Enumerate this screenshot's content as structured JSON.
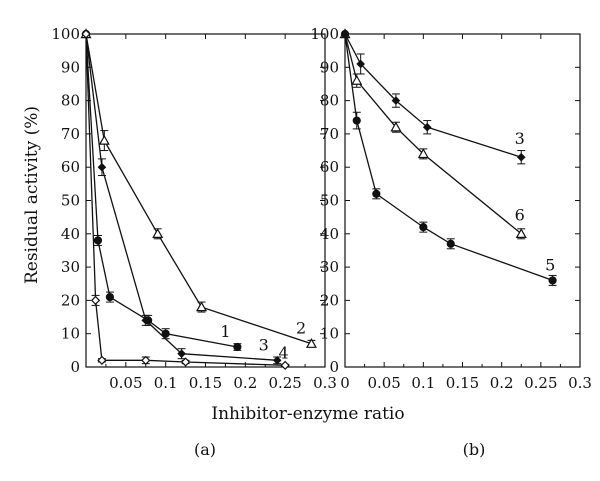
{
  "figure": {
    "ylabel": "Residual activity (%)",
    "xlabel": "Inhibitor-enzyme ratio"
  },
  "chart_data": [
    {
      "type": "line",
      "panel": "(a)",
      "xlim": [
        0,
        0.3
      ],
      "ylim": [
        0,
        100
      ],
      "x_ticks": [
        "0.05",
        "0.1",
        "0.15",
        "0.2",
        "0.25",
        "0.3"
      ],
      "x_tick_values": [
        0.05,
        0.1,
        0.15,
        0.2,
        0.25,
        0.3
      ],
      "y_ticks": [
        "0",
        "10",
        "20",
        "30",
        "40",
        "50",
        "60",
        "70",
        "80",
        "90",
        "100"
      ],
      "y_tick_values": [
        0,
        10,
        20,
        30,
        40,
        50,
        60,
        70,
        80,
        90,
        100
      ],
      "grid": false,
      "series": [
        {
          "name": "1",
          "marker": "filled-circle",
          "x": [
            0,
            0.015,
            0.03,
            0.078,
            0.1,
            0.19
          ],
          "y": [
            100,
            38,
            21,
            14,
            10,
            6
          ],
          "err": [
            0,
            1.5,
            1.5,
            1.5,
            1.5,
            1
          ]
        },
        {
          "name": "2",
          "marker": "open-triangle",
          "x": [
            0,
            0.023,
            0.09,
            0.145,
            0.283
          ],
          "y": [
            100,
            68,
            40,
            18,
            7
          ],
          "err": [
            0,
            3,
            1.5,
            1.5,
            1
          ]
        },
        {
          "name": "3",
          "marker": "filled-diamond",
          "x": [
            0,
            0.02,
            0.075,
            0.12,
            0.24
          ],
          "y": [
            100,
            60,
            14,
            4,
            2
          ],
          "err": [
            0,
            2.5,
            1.5,
            1.5,
            1
          ]
        },
        {
          "name": "4",
          "marker": "open-diamond",
          "x": [
            0,
            0.012,
            0.02,
            0.075,
            0.125,
            0.25
          ],
          "y": [
            100,
            20,
            2,
            2,
            1.5,
            0.5
          ],
          "err": [
            0,
            1.5,
            0.5,
            1,
            0.5,
            0.3
          ]
        }
      ],
      "labels": [
        {
          "text": "1",
          "x": 0.175,
          "y": 9
        },
        {
          "text": "2",
          "x": 0.27,
          "y": 10
        },
        {
          "text": "3",
          "x": 0.223,
          "y": 5
        },
        {
          "text": "4",
          "x": 0.248,
          "y": 2.5
        }
      ]
    },
    {
      "type": "line",
      "panel": "(b)",
      "xlim": [
        0,
        0.3
      ],
      "ylim": [
        0,
        100
      ],
      "x_ticks": [
        "0",
        "0.05",
        "0.1",
        "0.15",
        "0.2",
        "0.25",
        "0.3"
      ],
      "x_tick_values": [
        0,
        0.05,
        0.1,
        0.15,
        0.2,
        0.25,
        0.3
      ],
      "y_ticks": [
        "0",
        "10",
        "20",
        "30",
        "40",
        "50",
        "60",
        "70",
        "80",
        "90",
        "100"
      ],
      "y_tick_values": [
        0,
        10,
        20,
        30,
        40,
        50,
        60,
        70,
        80,
        90,
        100
      ],
      "grid": false,
      "series": [
        {
          "name": "3",
          "marker": "filled-diamond",
          "x": [
            0,
            0.02,
            0.065,
            0.105,
            0.225
          ],
          "y": [
            100,
            91,
            80,
            72,
            63
          ],
          "err": [
            0,
            3,
            2,
            2,
            2
          ]
        },
        {
          "name": "6",
          "marker": "open-triangle",
          "x": [
            0,
            0.015,
            0.065,
            0.1,
            0.225
          ],
          "y": [
            100,
            86,
            72,
            64,
            40
          ],
          "err": [
            0,
            2,
            1.5,
            1.5,
            1.5
          ]
        },
        {
          "name": "5",
          "marker": "filled-circle",
          "x": [
            0,
            0.015,
            0.04,
            0.1,
            0.135,
            0.265
          ],
          "y": [
            100,
            74,
            52,
            42,
            37,
            26
          ],
          "err": [
            0,
            2.5,
            1.5,
            1.5,
            1.5,
            1.5
          ]
        }
      ],
      "labels": [
        {
          "text": "3",
          "x": 0.223,
          "y": 67
        },
        {
          "text": "6",
          "x": 0.223,
          "y": 44
        },
        {
          "text": "5",
          "x": 0.262,
          "y": 29
        }
      ]
    }
  ]
}
